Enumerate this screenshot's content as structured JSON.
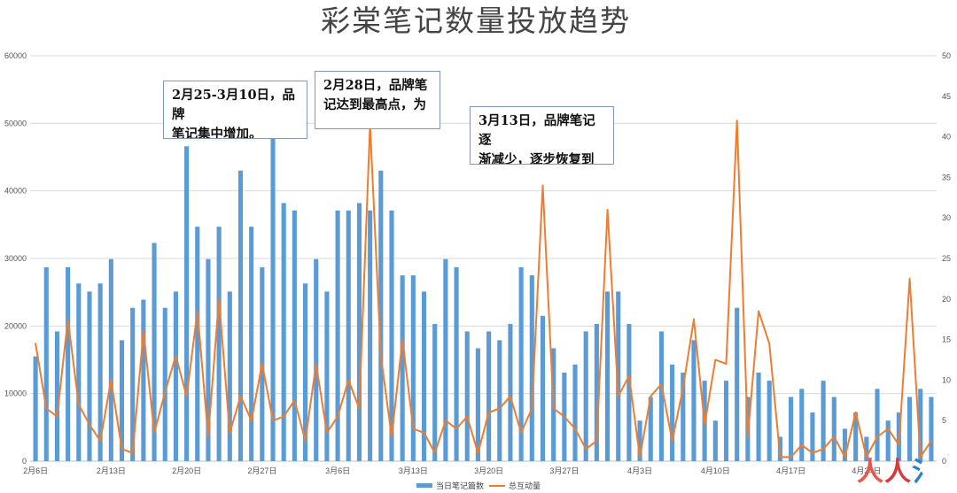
{
  "chart_data": {
    "type": "bar+line",
    "title": "彩棠笔记数量投放趋势",
    "left_axis": {
      "ticks": [
        "0",
        "10000",
        "20000",
        "30000",
        "40000",
        "50000",
        "60000"
      ],
      "ylim": [
        0,
        60000
      ]
    },
    "right_axis": {
      "ticks": [
        "0",
        "5",
        "10",
        "15",
        "20",
        "25",
        "30",
        "35",
        "40",
        "45",
        "50"
      ],
      "ylim": [
        0,
        50
      ]
    },
    "x_tick_labels": [
      "2月6日",
      "2月13日",
      "2月20日",
      "2月27日",
      "3月6日",
      "3月13日",
      "3月20日",
      "3月27日",
      "4月3日",
      "4月10日",
      "4月17日",
      "4月24日"
    ],
    "series": [
      {
        "name": "当日笔记篇数",
        "kind": "bar",
        "axis": "left",
        "color": "#5b9bd5",
        "values": [
          15500,
          28700,
          19200,
          28700,
          26300,
          25100,
          26300,
          29900,
          17900,
          22700,
          23900,
          32300,
          22700,
          25100,
          46600,
          34700,
          29900,
          34700,
          25100,
          43000,
          34700,
          28700,
          47800,
          38200,
          37100,
          26300,
          29900,
          25100,
          37100,
          37100,
          38200,
          37100,
          43000,
          37100,
          27500,
          27500,
          25100,
          20300,
          29900,
          28700,
          19200,
          16700,
          19200,
          17900,
          20300,
          28700,
          27500,
          21500,
          16700,
          13100,
          14300,
          19200,
          20300,
          25100,
          25100,
          20300,
          6000,
          9500,
          19200,
          14300,
          13100,
          17900,
          11900,
          6000,
          11900,
          22700,
          9500,
          13100,
          11900,
          3600,
          9500,
          10700,
          7200,
          11900,
          9500,
          4800,
          7200,
          3600,
          10700,
          6000,
          7200,
          9500,
          10700,
          9500
        ]
      },
      {
        "name": "总互动量",
        "kind": "line",
        "axis": "right",
        "color": "#ed7d31",
        "values": [
          14.5,
          6.5,
          5.5,
          17.5,
          7,
          4.5,
          2.5,
          10,
          1.5,
          1,
          16,
          3.5,
          8.5,
          13,
          8,
          18.5,
          3,
          20,
          3.5,
          8,
          5,
          12,
          5,
          5.5,
          7.5,
          2.5,
          12,
          3.5,
          5.5,
          10,
          6.5,
          41.5,
          13,
          3,
          15,
          4,
          3.5,
          1,
          5,
          4,
          5.5,
          1,
          6,
          6.5,
          8,
          3.5,
          6.5,
          34,
          6.5,
          5.5,
          4,
          1.5,
          2.5,
          31,
          8,
          10.5,
          0.5,
          8,
          9.5,
          2.5,
          9,
          17.5,
          4.5,
          12.5,
          12,
          42,
          3,
          18.5,
          14.5,
          0.5,
          0.5,
          2,
          1,
          1.5,
          3,
          0.5,
          6,
          0.5,
          3,
          4,
          2,
          22.5,
          0.5,
          2.5
        ]
      }
    ],
    "legend": [
      "当日笔记篇数",
      "总互动量"
    ],
    "legend_position": "bottom",
    "grid": true,
    "annotations": [
      [
        "2月25-3月10日，品牌",
        "笔记集中增加。"
      ],
      [
        "2月28日，品牌笔",
        "记达到最高点，为"
      ],
      [
        "3月13日，品牌笔记逐",
        "渐减少，逐步恢复到"
      ]
    ]
  },
  "watermark": [
    "人",
    "人",
    "都"
  ]
}
